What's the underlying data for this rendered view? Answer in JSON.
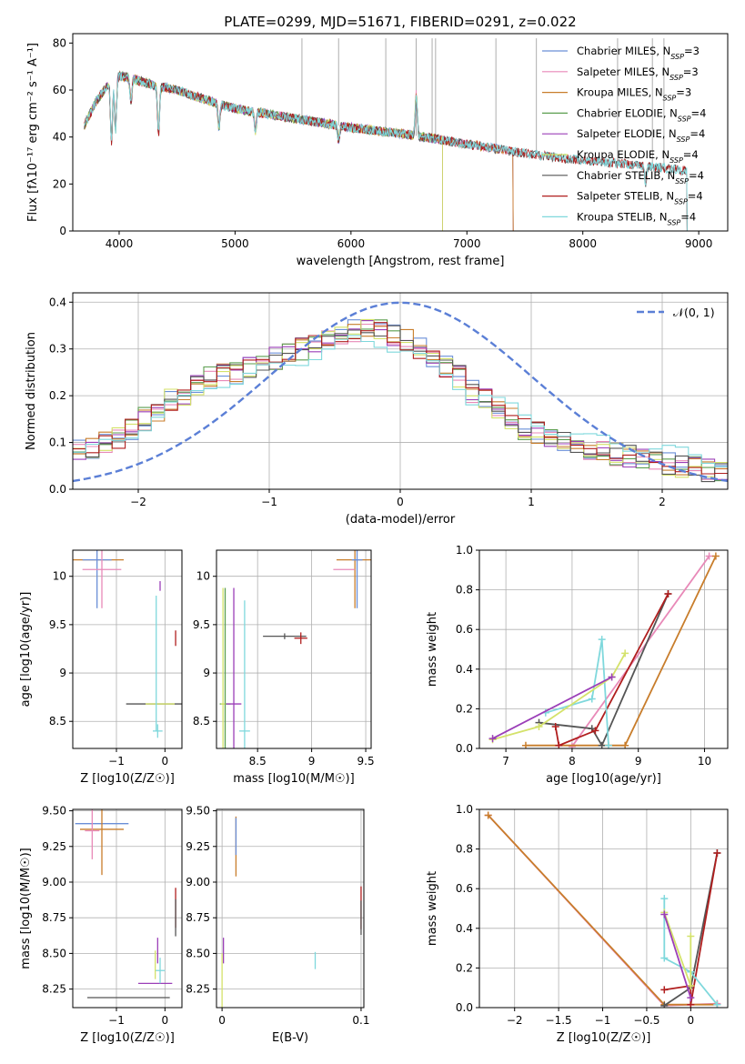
{
  "figure_title": "PLATE=0299, MJD=51671, FIBERID=0291, z=0.022",
  "chart_data": [
    {
      "id": "spectrum",
      "type": "line",
      "title": "PLATE=0299, MJD=51671, FIBERID=0291, z=0.022",
      "xlabel": "wavelength [Angstrom, rest frame]",
      "ylabel": "Flux [fλ10⁻¹⁷ erg cm⁻² s⁻¹ A⁻¹]",
      "xlim": [
        3600,
        9250
      ],
      "ylim": [
        0,
        84
      ],
      "xticks": [
        4000,
        5000,
        6000,
        7000,
        8000,
        9000
      ],
      "yticks": [
        0,
        20,
        40,
        60,
        80
      ],
      "grid": false,
      "legend": "top-right",
      "series": [
        {
          "name": "Chabrier MILES, N_SSP=3",
          "color": "#6a8fd8",
          "end": 7400
        },
        {
          "name": "Salpeter MILES, N_SSP=3",
          "color": "#e889b8",
          "end": 7400
        },
        {
          "name": "Kroupa MILES, N_SSP=3",
          "color": "#c87d2b",
          "end": 7400
        },
        {
          "name": "Chabrier ELODIE, N_SSP=4",
          "color": "#5b9e4f",
          "end": 6790
        },
        {
          "name": "Salpeter ELODIE, N_SSP=4",
          "color": "#9b3fb8",
          "end": 6790
        },
        {
          "name": "Kroupa ELODIE, N_SSP=4",
          "color": "#d4e26a",
          "end": 6790
        },
        {
          "name": "Chabrier STELIB, N_SSP=4",
          "color": "#555555",
          "end": 8900
        },
        {
          "name": "Salpeter STELIB, N_SSP=4",
          "color": "#b01e1e",
          "end": 8900
        },
        {
          "name": "Kroupa STELIB, N_SSP=4",
          "color": "#7fd8dc",
          "end": 8900
        }
      ],
      "continuum": [
        [
          3700,
          45
        ],
        [
          3800,
          55
        ],
        [
          3900,
          62
        ],
        [
          4000,
          66
        ],
        [
          4100,
          65
        ],
        [
          4300,
          62
        ],
        [
          4500,
          60
        ],
        [
          4800,
          55
        ],
        [
          5000,
          52
        ],
        [
          5500,
          48
        ],
        [
          6000,
          44
        ],
        [
          6500,
          41
        ],
        [
          7000,
          37
        ],
        [
          7500,
          33
        ],
        [
          8000,
          30
        ],
        [
          8500,
          28
        ],
        [
          9000,
          25
        ],
        [
          9250,
          24
        ]
      ],
      "absorption_lines": [
        [
          3934,
          25
        ],
        [
          3969,
          22
        ],
        [
          4102,
          10
        ],
        [
          4340,
          20
        ],
        [
          4861,
          10
        ],
        [
          5175,
          8
        ],
        [
          5893,
          6
        ],
        [
          6563,
          -18
        ],
        [
          8542,
          8
        ]
      ],
      "data_spikes": [
        5577,
        5893,
        6300,
        6563,
        6700,
        6730,
        7250,
        7600,
        8300,
        8600,
        8700
      ]
    },
    {
      "id": "residuals",
      "type": "histogram",
      "xlabel": "(data-model)/error",
      "ylabel": "Normed distribution",
      "xlim": [
        -2.5,
        2.5
      ],
      "ylim": [
        0,
        0.42
      ],
      "xticks": [
        -2,
        -1,
        0,
        1,
        2
      ],
      "yticks": [
        0.0,
        0.1,
        0.2,
        0.3,
        0.4
      ],
      "grid": true,
      "legend": "top-right",
      "reference_curve": {
        "name": "𝒩(0, 1)",
        "mean": 0,
        "sigma": 1,
        "color": "#5b7fd6"
      },
      "bins": {
        "start": -2.5,
        "width": 0.1,
        "count": 50
      },
      "series_colors": [
        "#6a8fd8",
        "#e889b8",
        "#c87d2b",
        "#5b9e4f",
        "#9b3fb8",
        "#d4e26a",
        "#555555",
        "#b01e1e",
        "#7fd8dc"
      ],
      "envelope": [
        0.085,
        0.09,
        0.1,
        0.11,
        0.13,
        0.15,
        0.17,
        0.19,
        0.2,
        0.22,
        0.24,
        0.25,
        0.25,
        0.26,
        0.27,
        0.28,
        0.29,
        0.3,
        0.31,
        0.32,
        0.33,
        0.34,
        0.34,
        0.34,
        0.33,
        0.32,
        0.3,
        0.28,
        0.26,
        0.24,
        0.21,
        0.19,
        0.17,
        0.15,
        0.13,
        0.12,
        0.11,
        0.1,
        0.09,
        0.08,
        0.08,
        0.075,
        0.07,
        0.065,
        0.06,
        0.055,
        0.05,
        0.045,
        0.04,
        0.035
      ]
    },
    {
      "id": "age-vs-Z",
      "type": "errorbar",
      "xlabel": "Z [log10(Z/Z☉)]",
      "ylabel": "age [log10(age/yr)]",
      "xlim": [
        -1.9,
        0.35
      ],
      "ylim": [
        8.22,
        10.27
      ],
      "xticks": [
        -1,
        0
      ],
      "yticks": [
        8.5,
        9.0,
        9.5,
        10.0
      ],
      "grid": true,
      "points": [
        {
          "x": -1.4,
          "y": 10.17,
          "xerr": 0.55,
          "yerr": 0.0,
          "color": "#c87d2b"
        },
        {
          "x": -1.4,
          "y": 10.17,
          "xerr": 0.3,
          "yerr": 0.5,
          "color": "#6a8fd8"
        },
        {
          "x": -1.3,
          "y": 10.07,
          "xerr": 0.4,
          "yerr": 0.4,
          "color": "#e889b8"
        },
        {
          "x": -0.2,
          "y": 8.68,
          "xerr": 0.6,
          "yerr": 0.0,
          "color": "#555555"
        },
        {
          "x": -0.1,
          "y": 8.68,
          "xerr": 0.3,
          "yerr": 0.0,
          "color": "#d4e26a"
        },
        {
          "x": 0.22,
          "y": 9.36,
          "xerr": 0.0,
          "yerr": 0.08,
          "color": "#b01e1e"
        },
        {
          "x": -0.1,
          "y": 9.9,
          "xerr": 0.0,
          "yerr": 0.05,
          "color": "#9b3fb8"
        },
        {
          "x": -0.15,
          "y": 8.4,
          "xerr": 0.1,
          "yerr": 0.07,
          "color": "#7fd8dc"
        },
        {
          "x": -0.18,
          "y": 9.1,
          "xerr": 0.0,
          "yerr": 0.7,
          "color": "#7fd8dc"
        }
      ]
    },
    {
      "id": "age-vs-mass",
      "type": "errorbar",
      "xlabel": "mass [log10(M/M☉)]",
      "ylabel": "",
      "xlim": [
        8.12,
        9.55
      ],
      "ylim": [
        8.22,
        10.27
      ],
      "xticks": [
        8.5,
        9.0,
        9.5
      ],
      "yticks": [
        8.5,
        9.0,
        9.5,
        10.0
      ],
      "grid": true,
      "points": [
        {
          "x": 9.4,
          "y": 10.17,
          "xerr": 0.17,
          "yerr": 0.5,
          "color": "#c87d2b"
        },
        {
          "x": 9.42,
          "y": 10.17,
          "xerr": 0.05,
          "yerr": 0.5,
          "color": "#6a8fd8"
        },
        {
          "x": 9.3,
          "y": 10.07,
          "xerr": 0.1,
          "yerr": 0.0,
          "color": "#e889b8"
        },
        {
          "x": 8.75,
          "y": 9.38,
          "xerr": 0.2,
          "yerr": 0.03,
          "color": "#555555"
        },
        {
          "x": 8.9,
          "y": 9.36,
          "xerr": 0.06,
          "yerr": 0.06,
          "color": "#b01e1e"
        },
        {
          "x": 8.2,
          "y": 8.68,
          "xerr": 0.05,
          "yerr": 1.2,
          "color": "#5b9e4f"
        },
        {
          "x": 8.28,
          "y": 8.68,
          "xerr": 0.07,
          "yerr": 1.2,
          "color": "#9b3fb8"
        },
        {
          "x": 8.18,
          "y": 8.68,
          "xerr": 0.02,
          "yerr": 1.2,
          "color": "#d4e26a"
        },
        {
          "x": 8.38,
          "y": 8.4,
          "xerr": 0.05,
          "yerr": 1.35,
          "color": "#7fd8dc"
        }
      ]
    },
    {
      "id": "weight-vs-age",
      "type": "line",
      "xlabel": "age [log10(age/yr)]",
      "ylabel": "mass weight",
      "xlim": [
        6.6,
        10.35
      ],
      "ylim": [
        0.0,
        1.0
      ],
      "xticks": [
        7,
        8,
        9,
        10
      ],
      "yticks": [
        0.0,
        0.2,
        0.4,
        0.6,
        0.8,
        1.0
      ],
      "grid": true,
      "series": [
        {
          "color": "#e889b8",
          "x": [
            8.0,
            10.07
          ],
          "y": [
            0.01,
            0.97
          ]
        },
        {
          "color": "#c87d2b",
          "x": [
            7.3,
            8.8,
            10.17
          ],
          "y": [
            0.015,
            0.015,
            0.97
          ]
        },
        {
          "color": "#555555",
          "x": [
            7.5,
            8.3,
            8.45,
            9.45
          ],
          "y": [
            0.13,
            0.1,
            0.015,
            0.78
          ]
        },
        {
          "color": "#b01e1e",
          "x": [
            7.75,
            7.8,
            8.35,
            9.45
          ],
          "y": [
            0.11,
            0.015,
            0.09,
            0.78
          ]
        },
        {
          "color": "#7fd8dc",
          "x": [
            7.6,
            8.3,
            8.45,
            8.55
          ],
          "y": [
            0.18,
            0.25,
            0.55,
            0.015
          ]
        },
        {
          "color": "#d4e26a",
          "x": [
            6.8,
            7.5,
            8.6,
            8.8
          ],
          "y": [
            0.045,
            0.11,
            0.36,
            0.48
          ]
        },
        {
          "color": "#9b3fb8",
          "x": [
            6.8,
            8.6
          ],
          "y": [
            0.05,
            0.36
          ]
        }
      ]
    },
    {
      "id": "mass-vs-Z",
      "type": "errorbar",
      "xlabel": "Z [log10(Z/Z☉)]",
      "ylabel": "mass [log10(M/M☉)]",
      "xlim": [
        -1.9,
        0.35
      ],
      "ylim": [
        8.12,
        9.51
      ],
      "xticks": [
        -1,
        0
      ],
      "yticks": [
        8.25,
        8.5,
        8.75,
        9.0,
        9.25,
        9.5
      ],
      "grid": true,
      "points": [
        {
          "x": -1.3,
          "y": 9.41,
          "xerr": 0.55,
          "yerr": 0.0,
          "color": "#6a8fd8"
        },
        {
          "x": -1.3,
          "y": 9.37,
          "xerr": 0.45,
          "yerr": 0.32,
          "color": "#c87d2b"
        },
        {
          "x": -1.5,
          "y": 9.36,
          "xerr": 0.15,
          "yerr": 0.2,
          "color": "#e889b8"
        },
        {
          "x": -0.75,
          "y": 8.19,
          "xerr": 0.85,
          "yerr": 0.0,
          "color": "#555555"
        },
        {
          "x": -0.2,
          "y": 8.29,
          "xerr": 0.35,
          "yerr": 0.0,
          "color": "#9b3fb8"
        },
        {
          "x": 0.22,
          "y": 8.82,
          "xerr": 0.0,
          "yerr": 0.14,
          "color": "#b01e1e"
        },
        {
          "x": 0.22,
          "y": 8.75,
          "xerr": 0.0,
          "yerr": 0.13,
          "color": "#555555"
        },
        {
          "x": -0.15,
          "y": 8.52,
          "xerr": 0.0,
          "yerr": 0.09,
          "color": "#9b3fb8"
        },
        {
          "x": -0.1,
          "y": 8.38,
          "xerr": 0.1,
          "yerr": 0.09,
          "color": "#7fd8dc"
        },
        {
          "x": -0.2,
          "y": 8.42,
          "xerr": 0.0,
          "yerr": 0.1,
          "color": "#d4e26a"
        }
      ]
    },
    {
      "id": "mass-vs-ebv",
      "type": "errorbar",
      "xlabel": "E(B-V)",
      "ylabel": "",
      "xlim": [
        -0.004,
        0.102
      ],
      "ylim": [
        8.12,
        9.51
      ],
      "xticks": [
        0.0,
        0.1
      ],
      "yticks": [
        8.25,
        8.5,
        8.75,
        9.0,
        9.25,
        9.5
      ],
      "grid": true,
      "points": [
        {
          "x": 0.01,
          "y": 9.25,
          "xerr": 0.0,
          "yerr": 0.21,
          "color": "#c87d2b"
        },
        {
          "x": 0.01,
          "y": 9.32,
          "xerr": 0.0,
          "yerr": 0.13,
          "color": "#6a8fd8"
        },
        {
          "x": 0.1,
          "y": 8.82,
          "xerr": 0.0,
          "yerr": 0.15,
          "color": "#b01e1e"
        },
        {
          "x": 0.1,
          "y": 8.75,
          "xerr": 0.0,
          "yerr": 0.12,
          "color": "#555555"
        },
        {
          "x": 0.067,
          "y": 8.45,
          "xerr": 0.0,
          "yerr": 0.06,
          "color": "#7fd8dc"
        },
        {
          "x": 0.001,
          "y": 8.52,
          "xerr": 0.0,
          "yerr": 0.09,
          "color": "#9b3fb8"
        },
        {
          "x": 0.0,
          "y": 8.3,
          "xerr": 0.0,
          "yerr": 0.2,
          "color": "#d4e26a"
        }
      ]
    },
    {
      "id": "weight-vs-Z",
      "type": "line",
      "xlabel": "Z [log10(Z/Z☉)]",
      "ylabel": "mass weight",
      "xlim": [
        -2.4,
        0.42
      ],
      "ylim": [
        0.0,
        1.0
      ],
      "xticks": [
        -2.0,
        -1.5,
        -1.0,
        -0.5,
        0.0
      ],
      "yticks": [
        0.0,
        0.2,
        0.4,
        0.6,
        0.8,
        1.0
      ],
      "grid": true,
      "series": [
        {
          "color": "#e889b8",
          "x": [
            -2.3,
            -0.3,
            0.3
          ],
          "y": [
            0.97,
            0.01,
            0.02
          ]
        },
        {
          "color": "#c87d2b",
          "x": [
            -2.3,
            -0.3,
            0.3
          ],
          "y": [
            0.97,
            0.015,
            0.015
          ]
        },
        {
          "color": "#555555",
          "x": [
            -0.3,
            0.0,
            0.3
          ],
          "y": [
            0.01,
            0.1,
            0.78
          ]
        },
        {
          "color": "#b01e1e",
          "x": [
            -0.3,
            0.0,
            0.0,
            0.3
          ],
          "y": [
            0.09,
            0.11,
            0.015,
            0.78
          ]
        },
        {
          "color": "#7fd8dc",
          "x": [
            -0.3,
            -0.3,
            0.0,
            0.3
          ],
          "y": [
            0.55,
            0.25,
            0.18,
            0.015
          ]
        },
        {
          "color": "#d4e26a",
          "x": [
            -0.3,
            0.0,
            0.0
          ],
          "y": [
            0.48,
            0.11,
            0.36
          ]
        },
        {
          "color": "#9b3fb8",
          "x": [
            -0.3,
            0.0
          ],
          "y": [
            0.47,
            0.05
          ]
        }
      ]
    }
  ]
}
